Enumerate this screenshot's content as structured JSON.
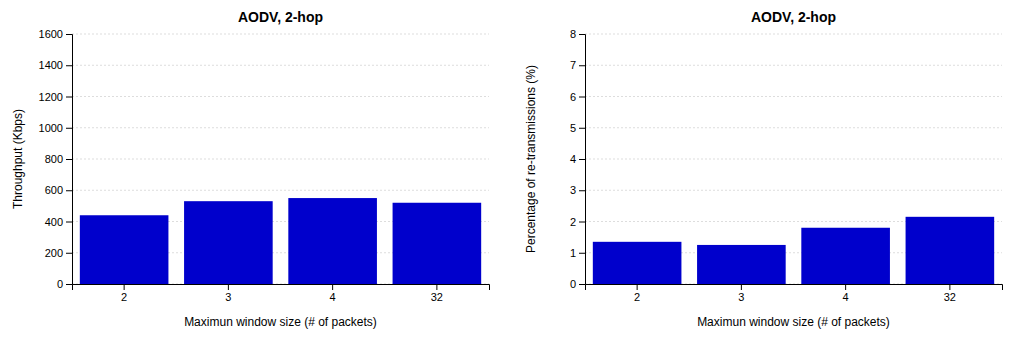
{
  "chart_data": [
    {
      "type": "bar",
      "title": "AODV, 2-hop",
      "categories": [
        "2",
        "3",
        "4",
        "32"
      ],
      "values": [
        440,
        530,
        550,
        520
      ],
      "color": "#0000CC",
      "xlabel": "Maximun window size (# of packets)",
      "ylabel": "Throughput (Kbps)",
      "ylim": [
        0,
        1600
      ],
      "yticks": [
        0,
        200,
        400,
        600,
        800,
        1000,
        1200,
        1400,
        1600
      ],
      "grid": true
    },
    {
      "type": "bar",
      "title": "AODV, 2-hop",
      "categories": [
        "2",
        "3",
        "4",
        "32"
      ],
      "values": [
        1.35,
        1.25,
        1.8,
        2.15
      ],
      "color": "#0000CC",
      "xlabel": "Maximun window size (# of packets)",
      "ylabel": "Percentage of re-transmissions (%)",
      "ylim": [
        0,
        8
      ],
      "yticks": [
        0,
        1,
        2,
        3,
        4,
        5,
        6,
        7,
        8
      ],
      "grid": true
    }
  ]
}
